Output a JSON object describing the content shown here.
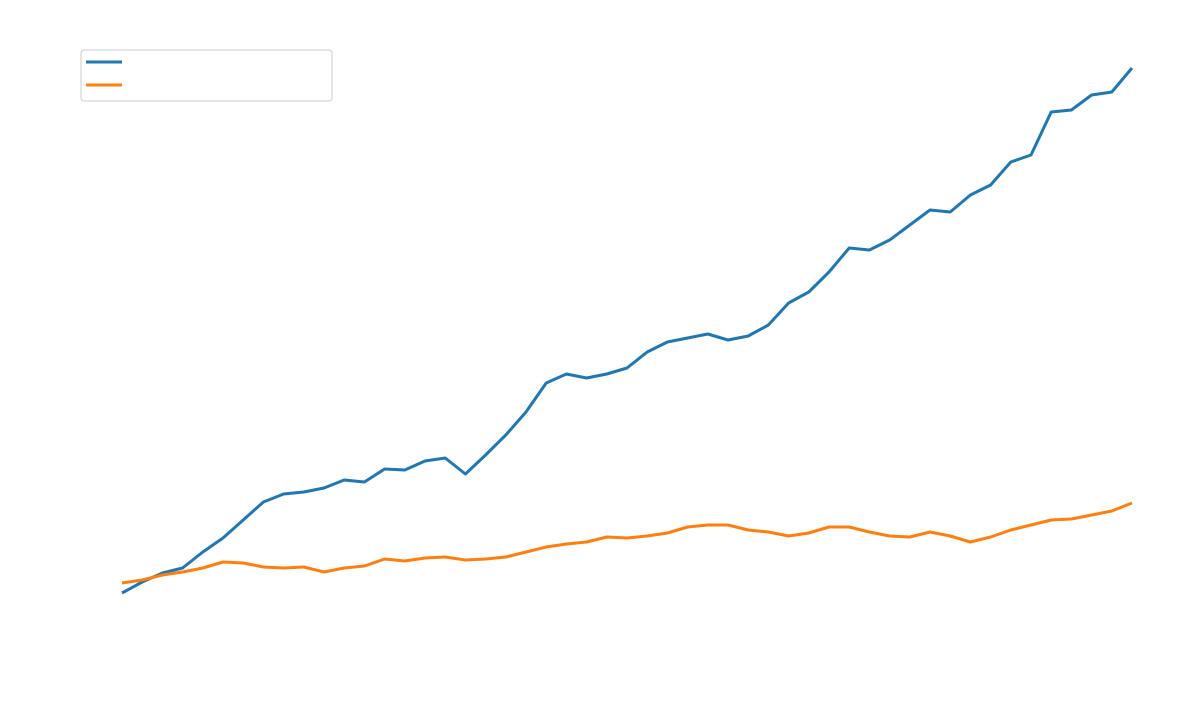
{
  "chart_data": {
    "type": "line",
    "legend": "upper left",
    "ylim": [
      0,
      620
    ],
    "series": [
      {
        "color": "#1f77b4",
        "values": [
          67,
          78,
          87,
          92,
          108,
          122,
          140,
          158,
          166,
          168,
          172,
          180,
          178,
          191,
          190,
          199,
          202,
          186,
          205,
          225,
          248,
          277,
          286,
          282,
          286,
          292,
          308,
          318,
          322,
          326,
          320,
          324,
          335,
          357,
          368,
          388,
          412,
          410,
          420,
          435,
          450,
          448,
          465,
          475,
          498,
          505,
          548,
          550,
          565,
          568,
          592
        ]
      },
      {
        "color": "#ff7f0e",
        "values": [
          77,
          80,
          85,
          88,
          92,
          98,
          97,
          93,
          92,
          93,
          88,
          92,
          94,
          101,
          99,
          102,
          103,
          100,
          101,
          103,
          108,
          113,
          116,
          118,
          123,
          122,
          124,
          127,
          133,
          135,
          135,
          130,
          128,
          124,
          127,
          133,
          133,
          128,
          124,
          123,
          128,
          124,
          118,
          123,
          130,
          135,
          140,
          141,
          145,
          149,
          157
        ]
      }
    ]
  }
}
